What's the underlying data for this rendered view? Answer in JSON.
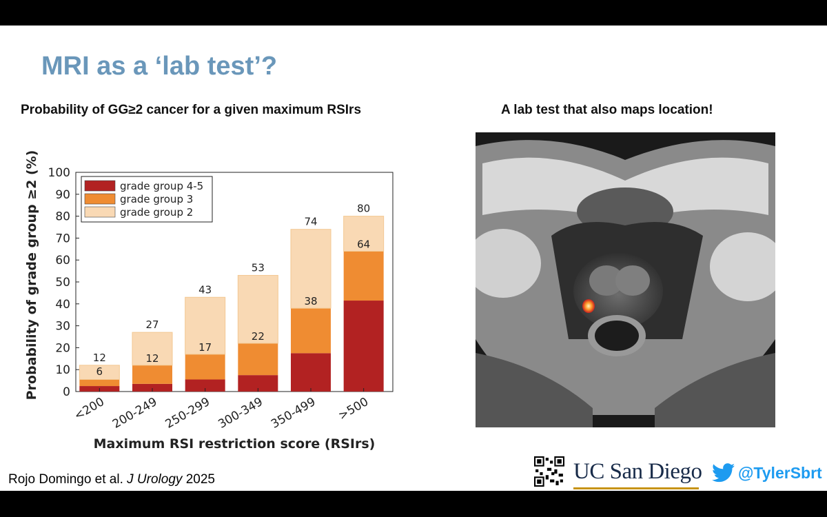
{
  "slide": {
    "title": "MRI as a ‘lab test’?",
    "chart_heading": "Probability of GG≥2 cancer for a given maximum RSIrs",
    "image_heading": "A lab test that also maps location!",
    "citation_authors": "Rojo Domingo et al.",
    "citation_journal": "J Urology",
    "citation_year": "2025",
    "logo_text": "UC San Diego",
    "twitter_handle": "@TylerSbrt",
    "colors": {
      "title": "#6a97ba",
      "gg45": "#b22222",
      "gg3": "#ef8c32",
      "gg2": "#f9d9b4",
      "twitter": "#1d9bf0",
      "ucsd_navy": "#182b49",
      "ucsd_gold": "#c69214"
    },
    "icons": [
      "qr-code-icon",
      "twitter-bird-icon"
    ]
  },
  "chart_data": {
    "type": "bar",
    "stacked": true,
    "categories": [
      "<200",
      "200-249",
      "250-299",
      "300-349",
      "350-499",
      ">500"
    ],
    "series": [
      {
        "name": "grade group 4-5",
        "values": [
          2.5,
          3.5,
          5.5,
          7.5,
          17.5,
          41.5
        ],
        "color": "#b22222"
      },
      {
        "name": "grade group 3",
        "values": [
          3,
          8.5,
          11.5,
          14.5,
          20.5,
          22.5
        ],
        "color": "#ef8c32"
      },
      {
        "name": "grade group 2",
        "values": [
          6.5,
          15,
          26,
          31,
          36,
          16
        ],
        "color": "#f9d9b4"
      }
    ],
    "top_labels": [
      "12",
      "27",
      "43",
      "53",
      "74",
      "80"
    ],
    "mid_labels": [
      "6",
      "12",
      "17",
      "22",
      "38",
      "64"
    ],
    "yticks": [
      "0",
      "10",
      "20",
      "30",
      "40",
      "50",
      "60",
      "70",
      "80",
      "90",
      "100"
    ],
    "xlabel": "Maximum RSI restriction score (RSIrs)",
    "ylabel": "Probability of grade group ≥2 (%)",
    "ylim": [
      0,
      100
    ],
    "grid": false,
    "legend_position": "top-left"
  }
}
